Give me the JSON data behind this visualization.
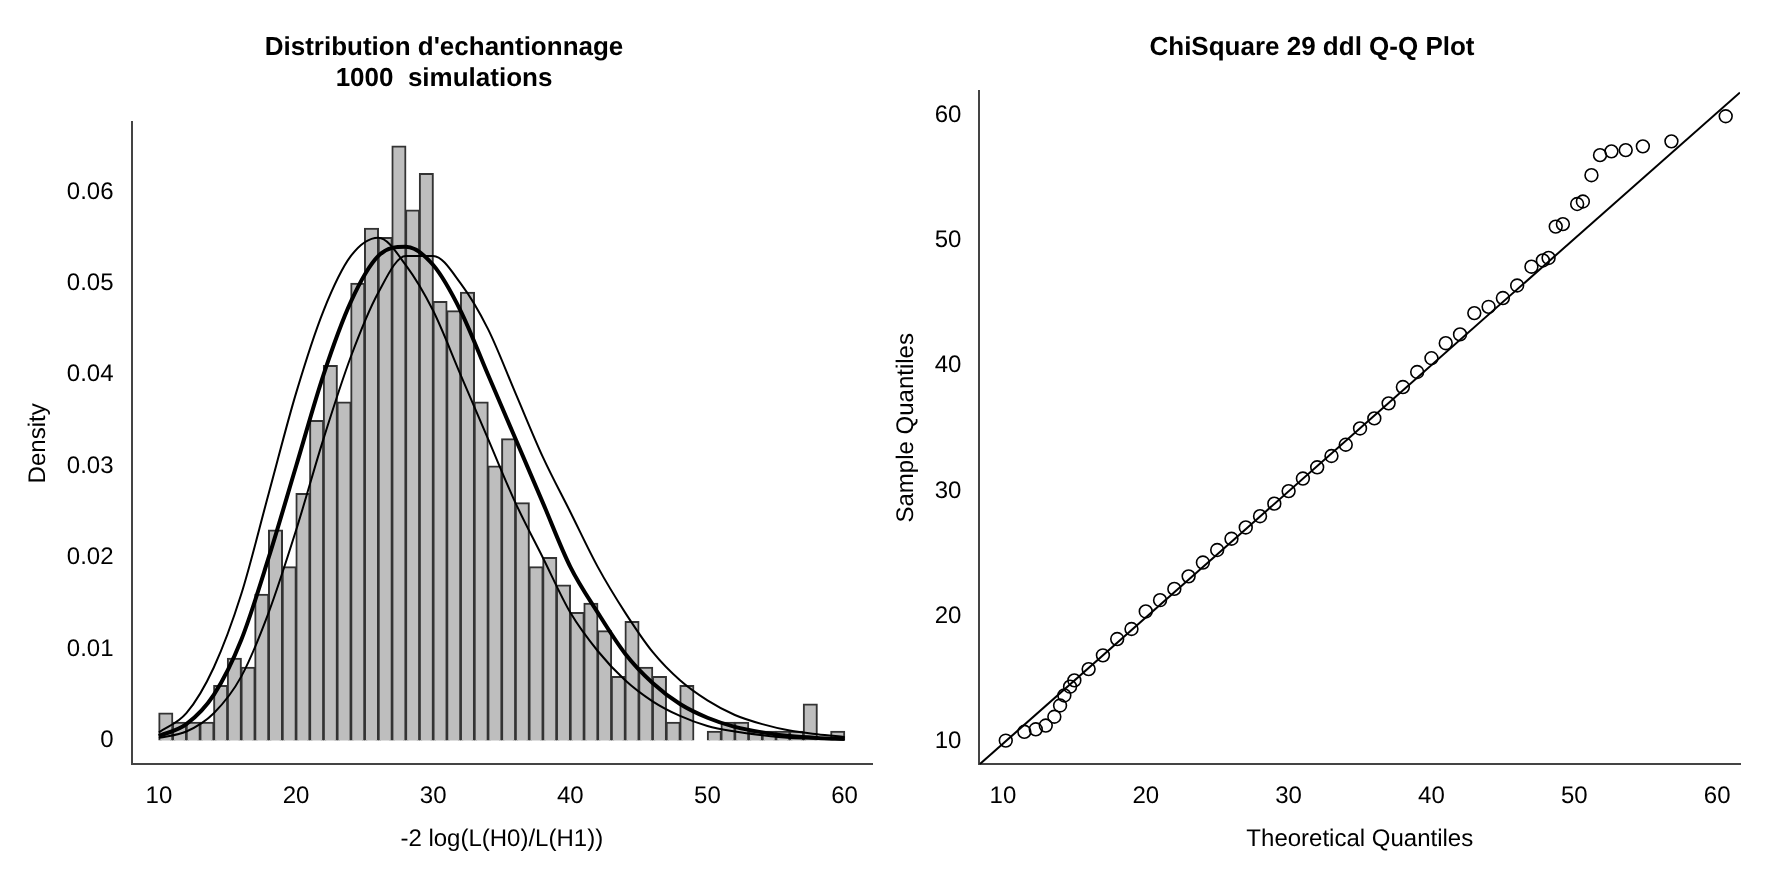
{
  "chart_data": [
    {
      "type": "histogram",
      "title": "Distribution d'echantionnage\n1000  simulations",
      "xlabel": "-2 log(L(H0)/L(H1))",
      "ylabel": "Density",
      "color": "#bebebe",
      "grid": false,
      "legend": false,
      "bins": [
        10,
        11,
        12,
        13,
        14,
        15,
        16,
        17,
        18,
        19,
        20,
        21,
        22,
        23,
        24,
        25,
        26,
        27,
        28,
        29,
        30,
        31,
        32,
        33,
        34,
        35,
        36,
        37,
        38,
        39,
        40,
        41,
        42,
        43,
        44,
        45,
        46,
        47,
        48,
        49,
        50,
        51,
        52,
        53,
        54,
        55,
        56,
        57,
        58,
        59,
        60
      ],
      "values": [
        0.003,
        0.002,
        0.002,
        0.002,
        0.006,
        0.009,
        0.008,
        0.016,
        0.023,
        0.019,
        0.027,
        0.035,
        0.041,
        0.037,
        0.05,
        0.056,
        0.055,
        0.065,
        0.058,
        0.062,
        0.048,
        0.047,
        0.049,
        0.037,
        0.03,
        0.033,
        0.026,
        0.019,
        0.02,
        0.017,
        0.014,
        0.015,
        0.012,
        0.007,
        0.013,
        0.008,
        0.007,
        0.002,
        0.006,
        0,
        0.001,
        0.002,
        0.002,
        0.001,
        0.001,
        0.001,
        0.001,
        0.004,
        0,
        0.001
      ],
      "series": [
        {
          "type": "line",
          "color": "#000000",
          "x": [
            10,
            12,
            14,
            16,
            18,
            20,
            22,
            24,
            26,
            28,
            30,
            32,
            34,
            36,
            38,
            40,
            42,
            44,
            46,
            48,
            50,
            52,
            54,
            56,
            58,
            60
          ],
          "values": [
            0.0005,
            0.0018,
            0.005,
            0.011,
            0.02,
            0.03,
            0.04,
            0.048,
            0.053,
            0.054,
            0.052,
            0.047,
            0.04,
            0.033,
            0.026,
            0.019,
            0.014,
            0.0095,
            0.0063,
            0.004,
            0.0025,
            0.0015,
            0.0009,
            0.0005,
            0.0003,
            0.0002
          ]
        },
        {
          "type": "line",
          "color": "#000000",
          "x": [
            10,
            12,
            14,
            16,
            18,
            20,
            22,
            24,
            26,
            28,
            30,
            32,
            34,
            36,
            38,
            40,
            42,
            44,
            46,
            48,
            50,
            52,
            54,
            56,
            58,
            60
          ],
          "values": [
            0.0009,
            0.003,
            0.008,
            0.016,
            0.027,
            0.038,
            0.047,
            0.053,
            0.055,
            0.052,
            0.047,
            0.04,
            0.033,
            0.026,
            0.02,
            0.014,
            0.0098,
            0.0066,
            0.0043,
            0.0027,
            0.0016,
            0.001,
            0.0006,
            0.0003,
            0.0002,
            0.0001
          ]
        },
        {
          "type": "line",
          "color": "#000000",
          "x": [
            10,
            12,
            14,
            16,
            18,
            20,
            22,
            24,
            26,
            28,
            30,
            32,
            34,
            36,
            38,
            40,
            42,
            44,
            46,
            48,
            50,
            52,
            54,
            56,
            58,
            60
          ],
          "values": [
            0.0003,
            0.001,
            0.003,
            0.007,
            0.014,
            0.023,
            0.033,
            0.042,
            0.049,
            0.053,
            0.053,
            0.05,
            0.045,
            0.038,
            0.031,
            0.025,
            0.019,
            0.014,
            0.0097,
            0.0066,
            0.0044,
            0.0028,
            0.0018,
            0.0011,
            0.0007,
            0.0004
          ]
        }
      ],
      "xlim": [
        8,
        62
      ],
      "xticks": [
        10,
        20,
        30,
        40,
        50,
        60
      ],
      "ylim": [
        -0.0026,
        0.0676
      ],
      "yticks": [
        0,
        0.01,
        0.02,
        0.03,
        0.04,
        0.05,
        0.06
      ]
    },
    {
      "type": "scatter",
      "title": "ChiSquare 29 ddl Q-Q Plot",
      "xlabel": "Theoretical Quantiles",
      "ylabel": "Sample Quantiles",
      "grid": false,
      "legend": false,
      "marker": "circle",
      "color": "#000000",
      "x": [
        10.2,
        11.5,
        12.3,
        13.0,
        13.6,
        14.0,
        14.3,
        14.7,
        15,
        16,
        17,
        18,
        19,
        20,
        21,
        22,
        23,
        24,
        25,
        26,
        27,
        28,
        29,
        30,
        31,
        32,
        33,
        34,
        35,
        36,
        37,
        38,
        39,
        40,
        41,
        42,
        43,
        44,
        45,
        46,
        47,
        47.8,
        48.2,
        48.7,
        49.2,
        50.2,
        50.6,
        51.2,
        51.8,
        52.6,
        53.6,
        54.8,
        56.8,
        60.6
      ],
      "values": [
        10.1,
        10.8,
        11.0,
        11.3,
        12.0,
        12.9,
        13.7,
        14.4,
        14.9,
        15.8,
        16.9,
        18.2,
        19.0,
        20.4,
        21.3,
        22.2,
        23.2,
        24.3,
        25.3,
        26.2,
        27.1,
        28.0,
        29.0,
        30.0,
        31.0,
        31.9,
        32.8,
        33.7,
        35.0,
        35.8,
        37.0,
        38.3,
        39.5,
        40.6,
        41.8,
        42.5,
        44.2,
        44.7,
        45.4,
        46.4,
        47.9,
        48.4,
        48.6,
        51.1,
        51.3,
        52.9,
        53.1,
        55.2,
        56.8,
        57.1,
        57.2,
        57.5,
        57.9,
        59.9
      ],
      "series": [
        {
          "type": "line",
          "color": "#000000",
          "marker": "none",
          "x": [
            8.36,
            61.6
          ],
          "values": [
            8.2,
            61.8
          ]
        }
      ],
      "xlim": [
        8.36,
        61.6
      ],
      "xticks": [
        10,
        20,
        30,
        40,
        50,
        60
      ],
      "ylim": [
        8.2,
        61.9
      ],
      "yticks": [
        10,
        20,
        30,
        40,
        50,
        60
      ]
    }
  ]
}
